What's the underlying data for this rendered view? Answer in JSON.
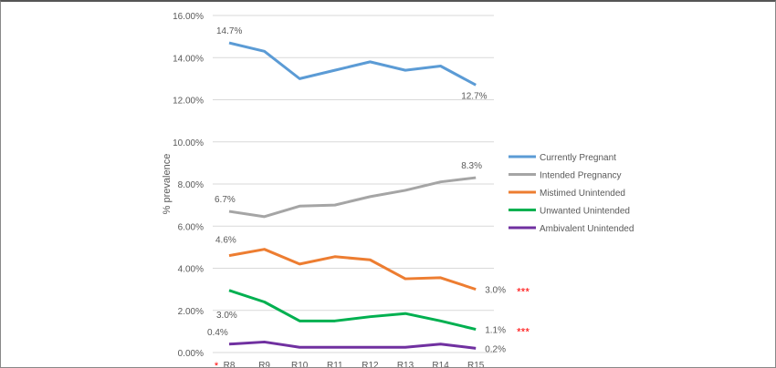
{
  "chart_data": {
    "type": "line",
    "title": "",
    "xlabel": "",
    "ylabel": "% prevalence",
    "categories": [
      "R8",
      "R9",
      "R10",
      "R11",
      "R12",
      "R13",
      "R14",
      "R15"
    ],
    "y_ticks": [
      "0.00%",
      "2.00%",
      "4.00%",
      "6.00%",
      "8.00%",
      "10.00%",
      "12.00%",
      "14.00%",
      "16.00%"
    ],
    "ylim": [
      0,
      16
    ],
    "grid": true,
    "legend_placement": "right",
    "series": [
      {
        "name": "Currently Pregnant",
        "color": "#5b9bd5",
        "values": [
          14.7,
          14.3,
          13.0,
          13.4,
          13.8,
          13.4,
          13.6,
          12.7
        ],
        "labels": {
          "first": "14.7%",
          "last": "12.7%"
        }
      },
      {
        "name": "Intended Pregnancy",
        "color": "#a5a5a5",
        "values": [
          6.7,
          6.45,
          6.95,
          7.0,
          7.4,
          7.7,
          8.1,
          8.3
        ],
        "labels": {
          "first": "6.7%",
          "last": "8.3%"
        }
      },
      {
        "name": "Mistimed Unintended",
        "color": "#ed7d31",
        "values": [
          4.6,
          4.9,
          4.2,
          4.55,
          4.4,
          3.5,
          3.55,
          3.0
        ],
        "labels": {
          "first": "4.6%",
          "last": "3.0%"
        },
        "significance": "***"
      },
      {
        "name": "Unwanted Unintended",
        "color": "#00b050",
        "values": [
          2.95,
          2.4,
          1.5,
          1.5,
          1.7,
          1.85,
          1.5,
          1.1
        ],
        "labels": {
          "first": "3.0%",
          "last": "1.1%"
        },
        "significance": "***"
      },
      {
        "name": "Ambivalent Unintended",
        "color": "#7030a0",
        "values": [
          0.4,
          0.5,
          0.25,
          0.25,
          0.25,
          0.25,
          0.4,
          0.2
        ],
        "labels": {
          "first": "0.4%",
          "last": "0.2%"
        }
      }
    ],
    "x_annotation": "*",
    "annotation_color": "#ff0000"
  }
}
